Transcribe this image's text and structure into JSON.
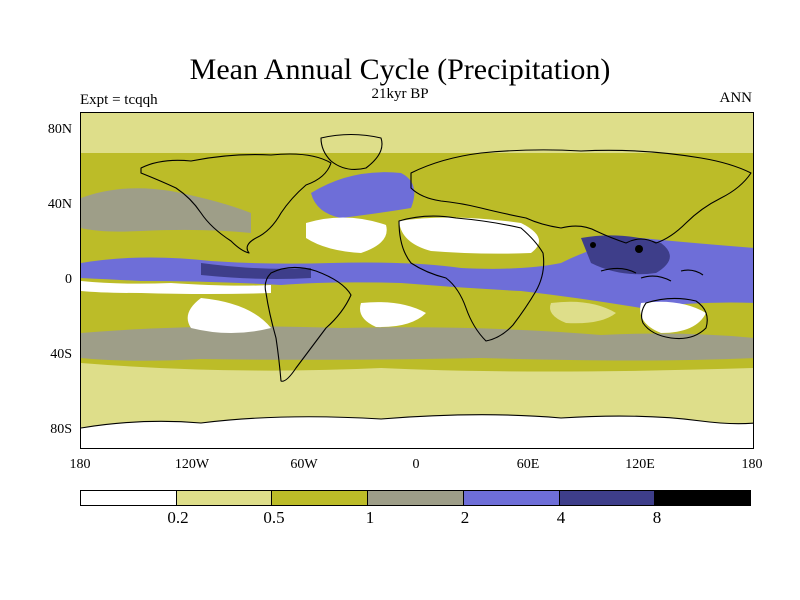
{
  "title": "Mean Annual Cycle (Precipitation)",
  "subtitle": "21kyr BP",
  "expt_label": "Expt = tcqqh",
  "season": "ANN",
  "y_axis": {
    "labels": [
      "80N",
      "40N",
      "0",
      "40S",
      "80S"
    ],
    "lat_values": [
      80,
      40,
      0,
      -40,
      -80
    ]
  },
  "x_axis": {
    "labels": [
      "180",
      "120W",
      "60W",
      "0",
      "60E",
      "120E",
      "180"
    ],
    "lon_values": [
      -180,
      -120,
      -60,
      0,
      60,
      120,
      180
    ]
  },
  "colorbar": {
    "colors": [
      "#ffffff",
      "#dede8a",
      "#bcbc28",
      "#9e9e88",
      "#6e6ed8",
      "#3e3e8a",
      "#000000"
    ],
    "tick_labels": [
      "0.2",
      "0.5",
      "1",
      "2",
      "4",
      "8"
    ]
  },
  "map": {
    "ocean_color": "#bcbc28",
    "coast_color": "#000000"
  }
}
